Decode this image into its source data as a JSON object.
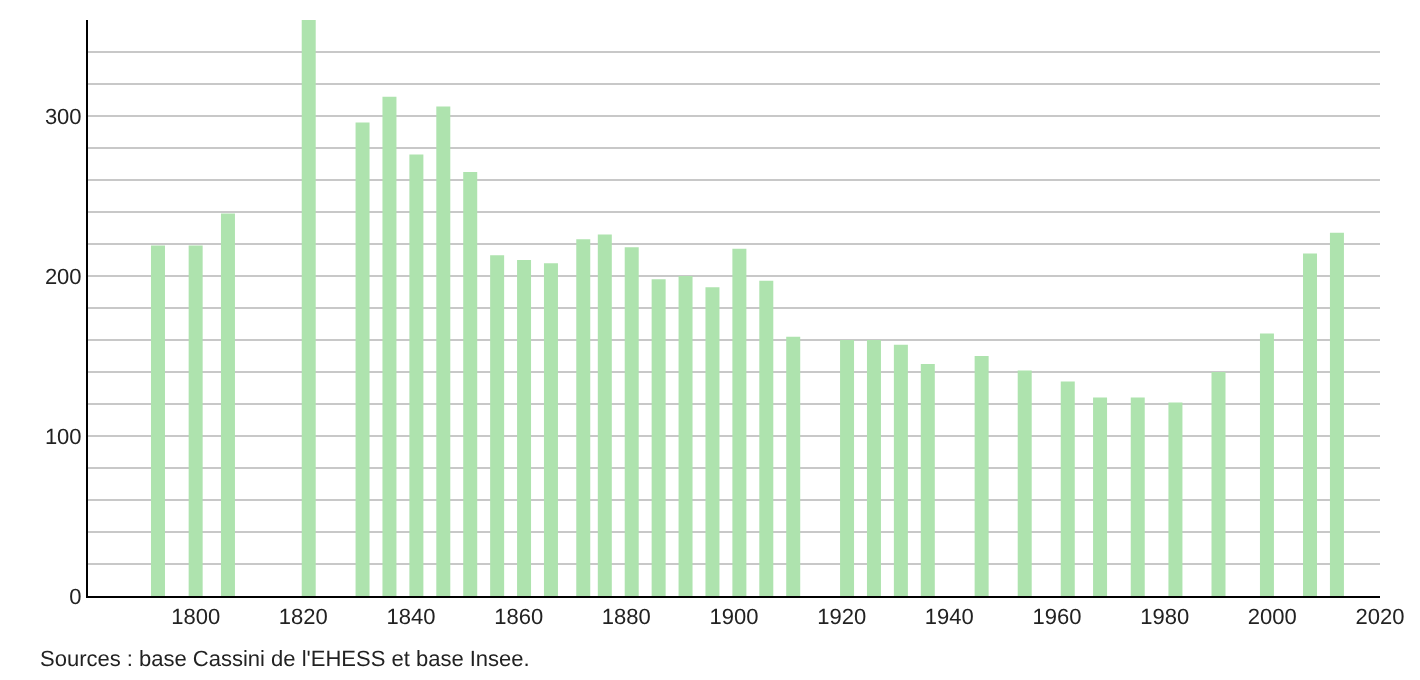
{
  "chart_data": {
    "type": "bar",
    "x": [
      1793,
      1800,
      1806,
      1821,
      1831,
      1836,
      1841,
      1846,
      1851,
      1856,
      1861,
      1866,
      1872,
      1876,
      1881,
      1886,
      1891,
      1896,
      1901,
      1906,
      1911,
      1921,
      1926,
      1931,
      1936,
      1946,
      1954,
      1962,
      1968,
      1975,
      1982,
      1990,
      1999,
      2007,
      2012
    ],
    "values": [
      219,
      219,
      239,
      360,
      296,
      312,
      276,
      306,
      265,
      213,
      210,
      208,
      223,
      226,
      218,
      198,
      200,
      193,
      217,
      197,
      162,
      160,
      160,
      157,
      145,
      150,
      141,
      134,
      124,
      124,
      121,
      140,
      164,
      214,
      227
    ],
    "color": "#aee3ae",
    "xlim": [
      1780,
      2020
    ],
    "xticks": [
      1800,
      1820,
      1840,
      1860,
      1880,
      1900,
      1920,
      1940,
      1960,
      1980,
      2000,
      2020
    ],
    "ylim": [
      0,
      360
    ],
    "yticks": [
      0,
      {
        "value": 20,
        "label": null
      },
      {
        "value": 40,
        "label": null
      },
      {
        "value": 60,
        "label": null
      },
      {
        "value": 80,
        "label": null
      },
      100,
      {
        "value": 120,
        "label": null
      },
      {
        "value": 140,
        "label": null
      },
      {
        "value": 160,
        "label": null
      },
      {
        "value": 180,
        "label": null
      },
      200,
      {
        "value": 220,
        "label": null
      },
      {
        "value": 240,
        "label": null
      },
      {
        "value": 260,
        "label": null
      },
      {
        "value": 280,
        "label": null
      },
      300,
      {
        "value": 320,
        "label": null
      },
      {
        "value": 340,
        "label": null
      }
    ],
    "grid": "y",
    "annotations": [
      "Sources : base Cassini de l'EHESS et base Insee."
    ]
  }
}
